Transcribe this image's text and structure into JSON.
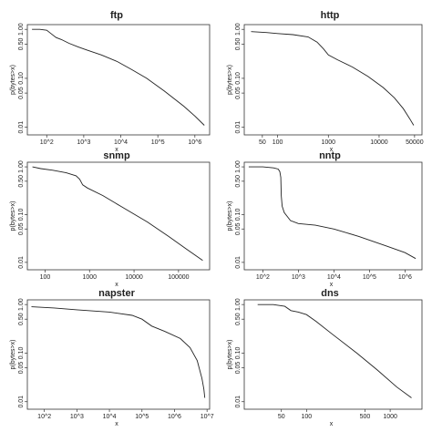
{
  "chart_data": [
    {
      "type": "line",
      "title": "ftp",
      "xlabel": "x",
      "ylabel": "p(bytes>x)",
      "xscale": "log",
      "yscale": "log",
      "xlim": [
        30,
        2500000
      ],
      "ylim": [
        0.007,
        1.25
      ],
      "xticks": [
        {
          "v": 100,
          "label": "10^2"
        },
        {
          "v": 1000,
          "label": "10^3"
        },
        {
          "v": 10000,
          "label": "10^4"
        },
        {
          "v": 100000,
          "label": "10^5"
        },
        {
          "v": 1000000,
          "label": "10^6"
        }
      ],
      "yticks": [
        {
          "v": 0.01,
          "label": "0.01"
        },
        {
          "v": 0.05,
          "label": "0.05"
        },
        {
          "v": 0.1,
          "label": "0.10"
        },
        {
          "v": 0.5,
          "label": "0.50"
        },
        {
          "v": 1.0,
          "label": "1.00"
        }
      ],
      "series": [
        {
          "x": [
            40,
            65,
            100,
            130,
            180,
            250,
            400,
            700,
            1200,
            3000,
            8000,
            20000,
            50000,
            150000,
            500000,
            1000000,
            1800000
          ],
          "y": [
            1.0,
            1.0,
            0.96,
            0.82,
            0.68,
            0.62,
            0.52,
            0.44,
            0.38,
            0.3,
            0.22,
            0.15,
            0.1,
            0.055,
            0.027,
            0.017,
            0.011
          ]
        }
      ]
    },
    {
      "type": "line",
      "title": "http",
      "xlabel": "x",
      "ylabel": "p(bytes>x)",
      "xscale": "log",
      "yscale": "log",
      "xlim": [
        22,
        70000
      ],
      "ylim": [
        0.007,
        1.25
      ],
      "xticks": [
        {
          "v": 50,
          "label": "50"
        },
        {
          "v": 100,
          "label": "100"
        },
        {
          "v": 1000,
          "label": "1000"
        },
        {
          "v": 10000,
          "label": "10000"
        },
        {
          "v": 50000,
          "label": "50000"
        }
      ],
      "yticks": [
        {
          "v": 0.01,
          "label": "0.01"
        },
        {
          "v": 0.05,
          "label": "0.05"
        },
        {
          "v": 0.1,
          "label": "0.10"
        },
        {
          "v": 0.5,
          "label": "0.50"
        },
        {
          "v": 1.0,
          "label": "1.00"
        }
      ],
      "series": [
        {
          "x": [
            30,
            60,
            100,
            200,
            400,
            600,
            800,
            1000,
            1500,
            3000,
            6000,
            12000,
            20000,
            30000,
            40000,
            48000
          ],
          "y": [
            0.9,
            0.86,
            0.82,
            0.78,
            0.7,
            0.55,
            0.4,
            0.3,
            0.24,
            0.17,
            0.11,
            0.065,
            0.04,
            0.024,
            0.015,
            0.011
          ]
        }
      ]
    },
    {
      "type": "line",
      "title": "snmp",
      "xlabel": "x",
      "ylabel": "p(bytes>x)",
      "xscale": "log",
      "yscale": "log",
      "xlim": [
        40,
        500000
      ],
      "ylim": [
        0.007,
        1.25
      ],
      "xticks": [
        {
          "v": 100,
          "label": "100"
        },
        {
          "v": 1000,
          "label": "1000"
        },
        {
          "v": 10000,
          "label": "10000"
        },
        {
          "v": 100000,
          "label": "100000"
        }
      ],
      "yticks": [
        {
          "v": 0.01,
          "label": "0.01"
        },
        {
          "v": 0.05,
          "label": "0.05"
        },
        {
          "v": 0.1,
          "label": "0.10"
        },
        {
          "v": 0.5,
          "label": "0.50"
        },
        {
          "v": 1.0,
          "label": "1.00"
        }
      ],
      "series": [
        {
          "x": [
            52,
            80,
            150,
            300,
            500,
            600,
            700,
            900,
            2000,
            5000,
            20000,
            60000,
            150000,
            350000
          ],
          "y": [
            1.0,
            0.92,
            0.85,
            0.75,
            0.65,
            0.55,
            0.42,
            0.36,
            0.25,
            0.15,
            0.07,
            0.035,
            0.019,
            0.011
          ]
        }
      ]
    },
    {
      "type": "line",
      "title": "nntp",
      "xlabel": "x",
      "ylabel": "p(bytes>x)",
      "xscale": "log",
      "yscale": "log",
      "xlim": [
        30,
        3000000
      ],
      "ylim": [
        0.007,
        1.25
      ],
      "xticks": [
        {
          "v": 100,
          "label": "10^2"
        },
        {
          "v": 1000,
          "label": "10^3"
        },
        {
          "v": 10000,
          "label": "10^4"
        },
        {
          "v": 100000,
          "label": "10^5"
        },
        {
          "v": 1000000,
          "label": "10^6"
        }
      ],
      "yticks": [
        {
          "v": 0.01,
          "label": "0.01"
        },
        {
          "v": 0.05,
          "label": "0.05"
        },
        {
          "v": 0.1,
          "label": "0.10"
        },
        {
          "v": 0.5,
          "label": "0.50"
        },
        {
          "v": 1.0,
          "label": "1.00"
        }
      ],
      "series": [
        {
          "x": [
            40,
            100,
            200,
            270,
            300,
            320,
            330,
            350,
            400,
            600,
            1000,
            3000,
            10000,
            50000,
            300000,
            1000000,
            2000000
          ],
          "y": [
            1.0,
            1.0,
            0.95,
            0.9,
            0.8,
            0.6,
            0.25,
            0.15,
            0.11,
            0.075,
            0.065,
            0.06,
            0.05,
            0.035,
            0.022,
            0.016,
            0.012
          ]
        }
      ]
    },
    {
      "type": "line",
      "title": "napster",
      "xlabel": "x",
      "ylabel": "p(bytes>x)",
      "xscale": "log",
      "yscale": "log",
      "xlim": [
        30,
        12000000
      ],
      "ylim": [
        0.007,
        1.25
      ],
      "xticks": [
        {
          "v": 100,
          "label": "10^2"
        },
        {
          "v": 1000,
          "label": "10^3"
        },
        {
          "v": 10000,
          "label": "10^4"
        },
        {
          "v": 100000,
          "label": "10^5"
        },
        {
          "v": 1000000,
          "label": "10^6"
        },
        {
          "v": 10000000,
          "label": "10^7"
        }
      ],
      "yticks": [
        {
          "v": 0.01,
          "label": "0.01"
        },
        {
          "v": 0.05,
          "label": "0.05"
        },
        {
          "v": 0.1,
          "label": "0.10"
        },
        {
          "v": 0.5,
          "label": "0.50"
        },
        {
          "v": 1.0,
          "label": "1.00"
        }
      ],
      "series": [
        {
          "x": [
            40,
            200,
            1000,
            10000,
            50000,
            100000,
            200000,
            500000,
            1500000,
            3000000,
            5000000,
            7000000,
            8000000,
            8500000
          ],
          "y": [
            0.9,
            0.85,
            0.78,
            0.7,
            0.6,
            0.5,
            0.36,
            0.28,
            0.2,
            0.13,
            0.07,
            0.03,
            0.018,
            0.012
          ]
        }
      ]
    },
    {
      "type": "line",
      "title": "dns",
      "xlabel": "x",
      "ylabel": "p(bytes>x)",
      "xscale": "log",
      "yscale": "log",
      "xlim": [
        18,
        2400
      ],
      "ylim": [
        0.007,
        1.25
      ],
      "xticks": [
        {
          "v": 50,
          "label": "50"
        },
        {
          "v": 100,
          "label": "100"
        },
        {
          "v": 500,
          "label": "500"
        },
        {
          "v": 1000,
          "label": "1000"
        }
      ],
      "yticks": [
        {
          "v": 0.01,
          "label": "0.01"
        },
        {
          "v": 0.05,
          "label": "0.05"
        },
        {
          "v": 0.1,
          "label": "0.10"
        },
        {
          "v": 0.5,
          "label": "0.50"
        },
        {
          "v": 1.0,
          "label": "1.00"
        }
      ],
      "series": [
        {
          "x": [
            26,
            40,
            55,
            65,
            80,
            100,
            130,
            200,
            400,
            700,
            1200,
            1800
          ],
          "y": [
            1.0,
            1.0,
            0.92,
            0.75,
            0.7,
            0.62,
            0.45,
            0.25,
            0.1,
            0.045,
            0.02,
            0.012
          ]
        }
      ]
    }
  ]
}
